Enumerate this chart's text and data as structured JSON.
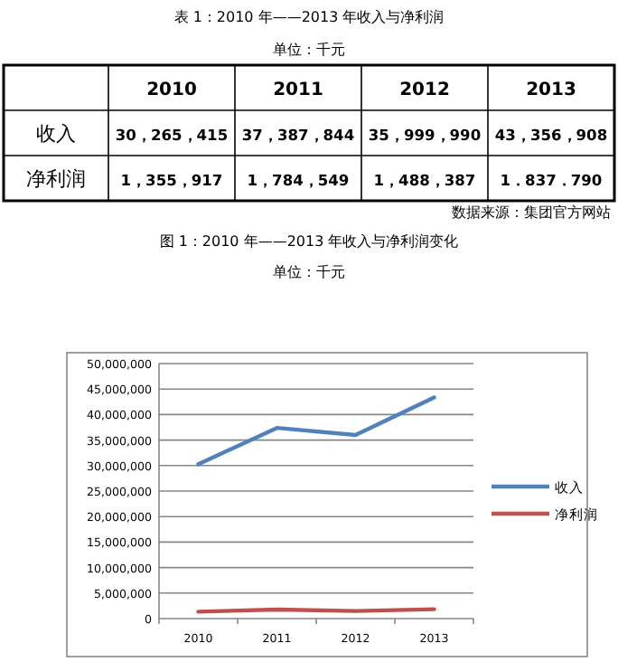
{
  "chart_data": {
    "type": "line",
    "title": "图 1：2010 年——2013 年收入与净利润变化",
    "subtitle": "单位：千元",
    "annotations": [
      "表 1：2010 年——2013 年收入与净利润",
      "单位：千元",
      "数据来源：集团官方网站",
      "30，265，415",
      "37，387，844",
      "35，999，990",
      "43，356，908",
      "1，355，917",
      "1，784，549",
      "1，488，387",
      "1．837．790"
    ],
    "categories": [
      "2010",
      "2011",
      "2012",
      "2013"
    ],
    "series": [
      {
        "name": "收入",
        "color": "#4f81bd",
        "values": [
          30265415,
          37387844,
          35999990,
          43356908
        ]
      },
      {
        "name": "净利润",
        "color": "#c0504d",
        "values": [
          1355917,
          1784549,
          1488387,
          1837790
        ]
      }
    ],
    "ylim": [
      0,
      50000000
    ],
    "yticks": [
      {
        "value": 0,
        "label": "0"
      },
      {
        "value": 5000000,
        "label": "5,000,000"
      },
      {
        "value": 10000000,
        "label": "10,000,000"
      },
      {
        "value": 15000000,
        "label": "15,000,000"
      },
      {
        "value": 20000000,
        "label": "20,000,000"
      },
      {
        "value": 25000000,
        "label": "25,000,000"
      },
      {
        "value": 30000000,
        "label": "30,000,000"
      },
      {
        "value": 35000000,
        "label": "35,000,000"
      },
      {
        "value": 40000000,
        "label": "40,000,000"
      },
      {
        "value": 45000000,
        "label": "45,000,000"
      },
      {
        "value": 50000000,
        "label": "50,000,000"
      }
    ],
    "grid": "y",
    "legend": "right",
    "marker": "none",
    "line_style": "solid"
  }
}
